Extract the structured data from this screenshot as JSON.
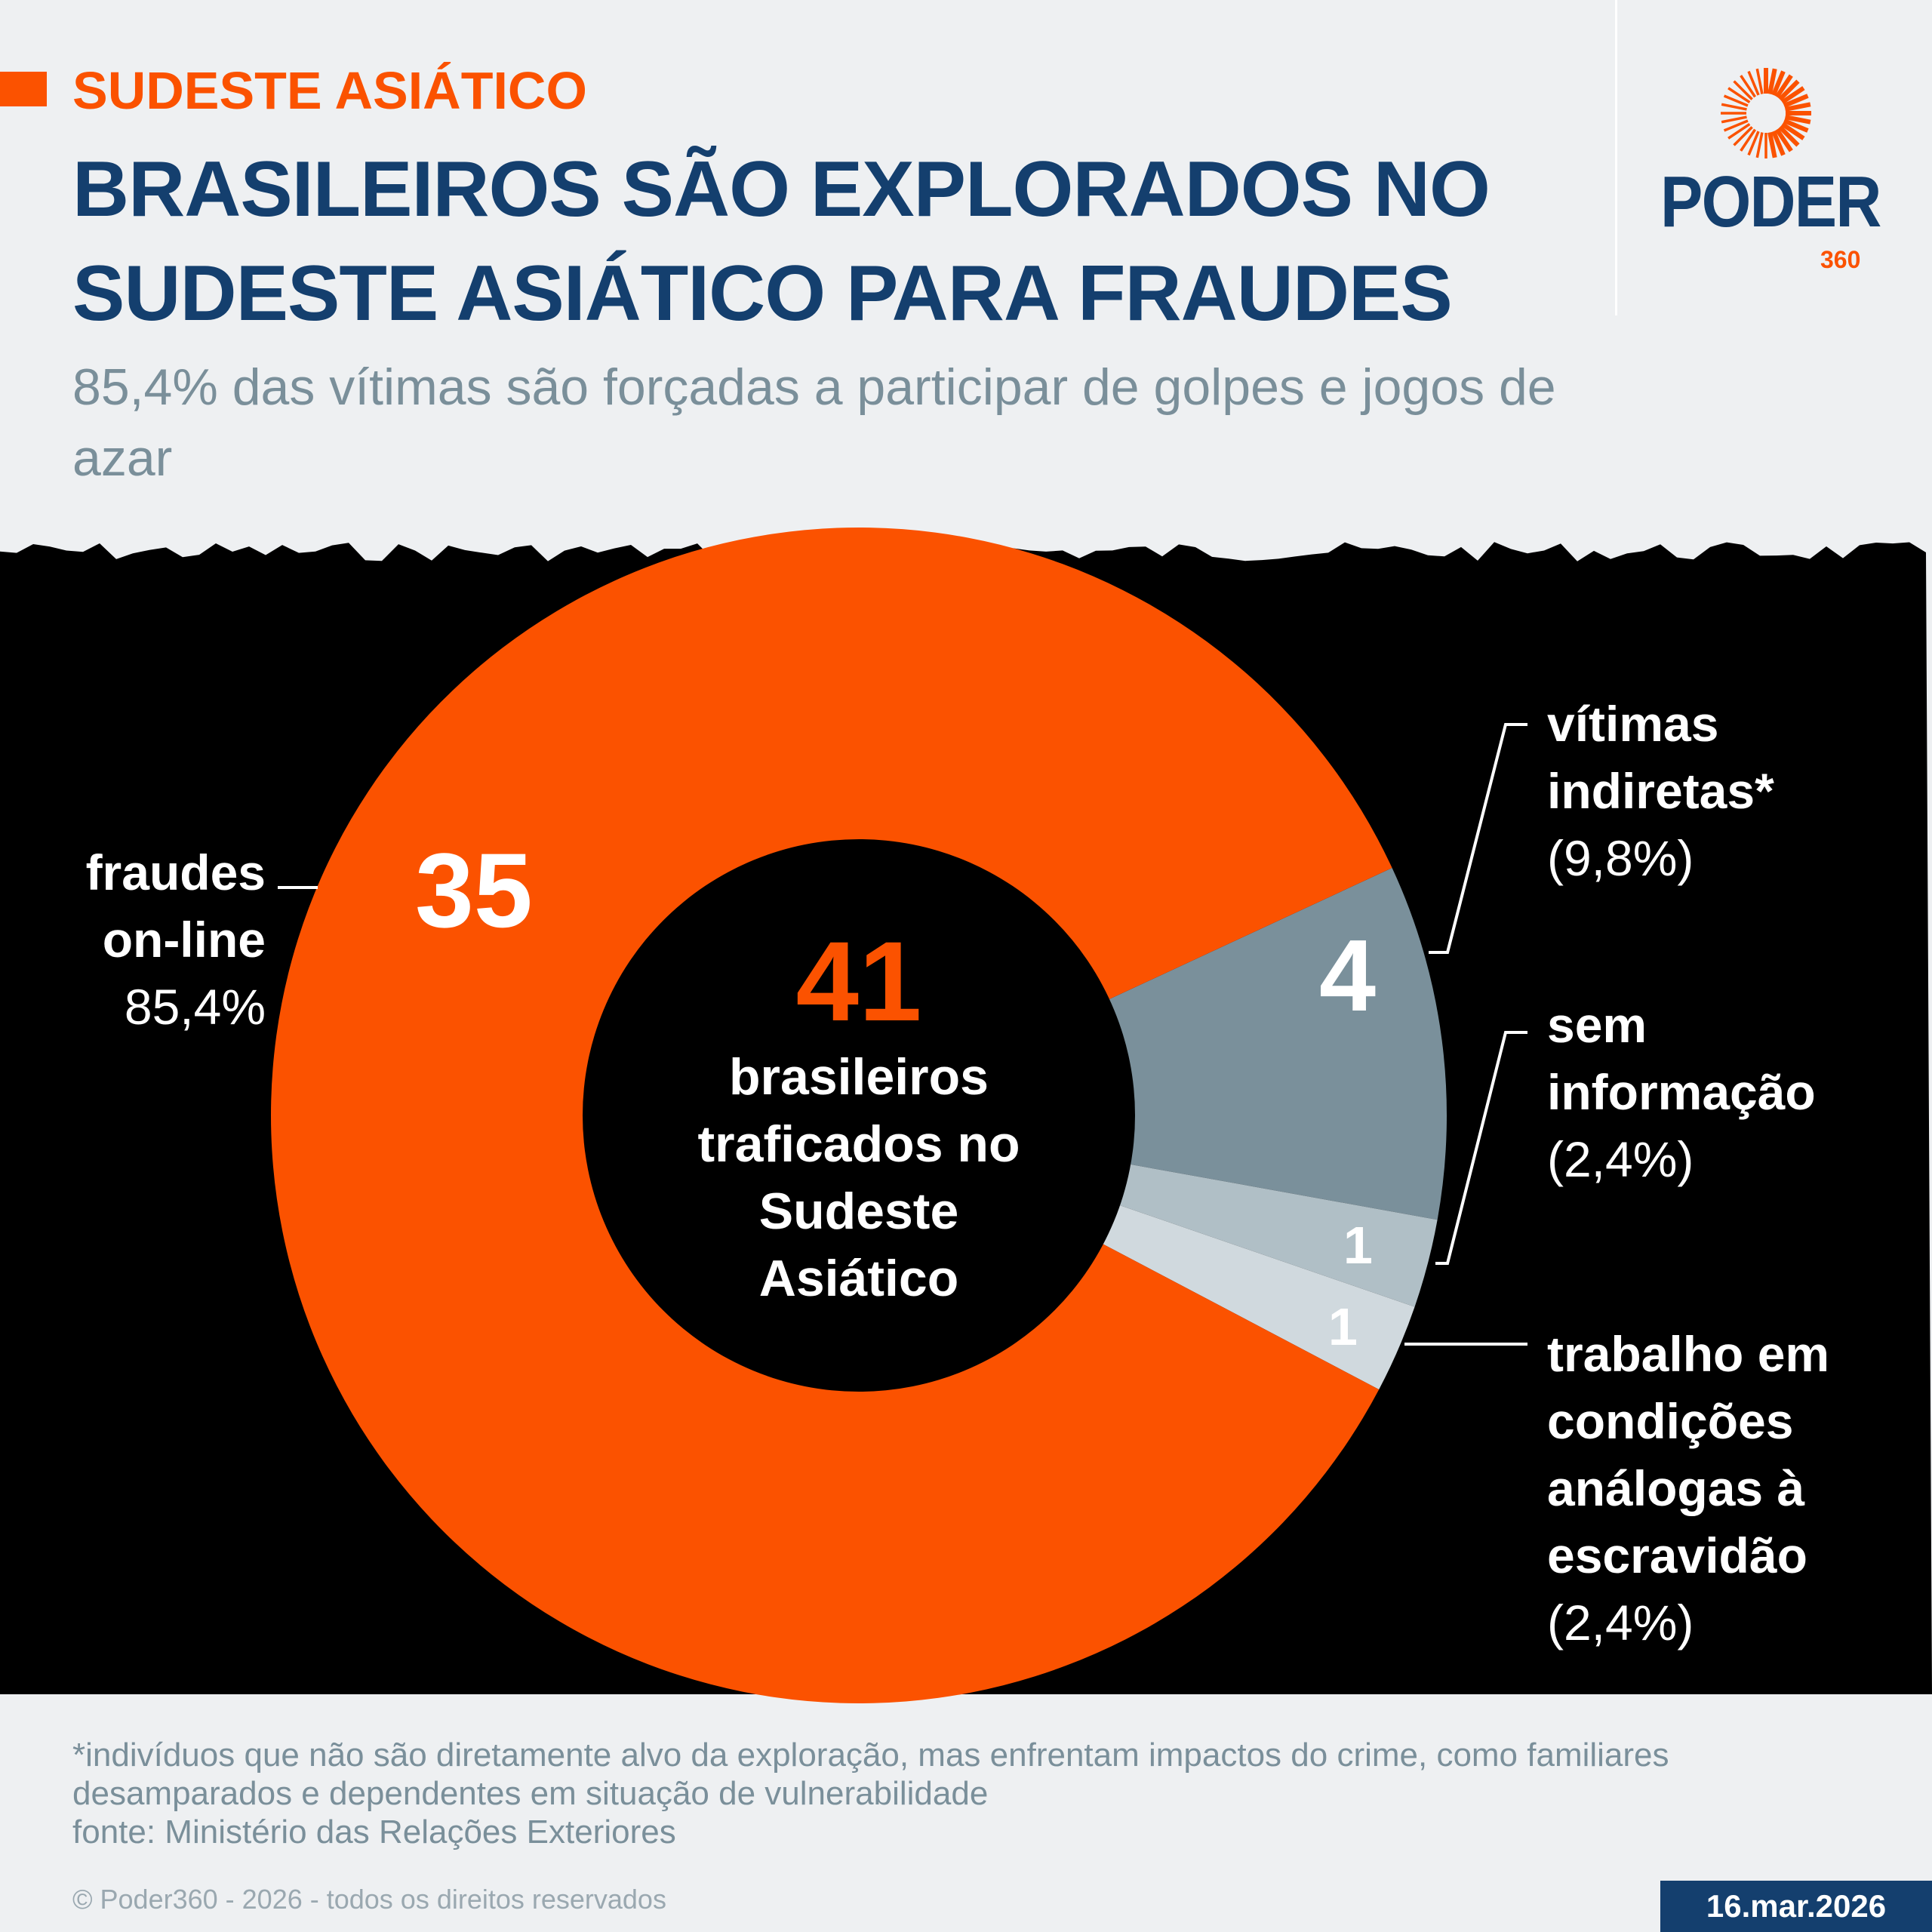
{
  "header": {
    "kicker": "SUDESTE ASIÁTICO",
    "title": "BRASILEIROS SÃO EXPLORADOS NO SUDESTE ASIÁTICO PARA FRAUDES",
    "subtitle": "85,4% das vítimas são forçadas a participar de golpes e jogos de azar"
  },
  "logo": {
    "word": "PODER",
    "number": "360"
  },
  "chart_data": {
    "type": "pie",
    "subtype": "donut",
    "total": {
      "value": "41",
      "label": "brasileiros traficados no Sudeste Asiático"
    },
    "slices": [
      {
        "name": "vítimas indiretas*",
        "lines": [
          "vítimas",
          "indiretas*"
        ],
        "value": 4,
        "value_label": "4",
        "percent": "(9,8%)",
        "color": "#7a909b"
      },
      {
        "name": "sem informação",
        "lines": [
          "sem",
          "informação"
        ],
        "value": 1,
        "value_label": "1",
        "percent": "(2,4%)",
        "color": "#b0bfc6"
      },
      {
        "name": "trabalho em condições análogas à escravidão",
        "lines": [
          "trabalho em",
          "condições",
          "análogas à",
          "escravidão"
        ],
        "value": 1,
        "value_label": "1",
        "percent": "(2,4%)",
        "color": "#d0d9de"
      },
      {
        "name": "fraudes on-line",
        "lines": [
          "fraudes",
          "on-line"
        ],
        "value": 35,
        "value_label": "35",
        "percent": "85,4%",
        "color": "#fb5200"
      }
    ]
  },
  "footer": {
    "note": "*indivíduos que não são diretamente alvo da exploração, mas enfrentam impactos do crime, como familiares desamparados e dependentes em situação de vulnerabilidade",
    "source": "fonte: Ministério das Relações Exteriores",
    "copyright": "© Poder360 - 2026 - todos os direitos reservados",
    "date": "16.mar.2026"
  }
}
